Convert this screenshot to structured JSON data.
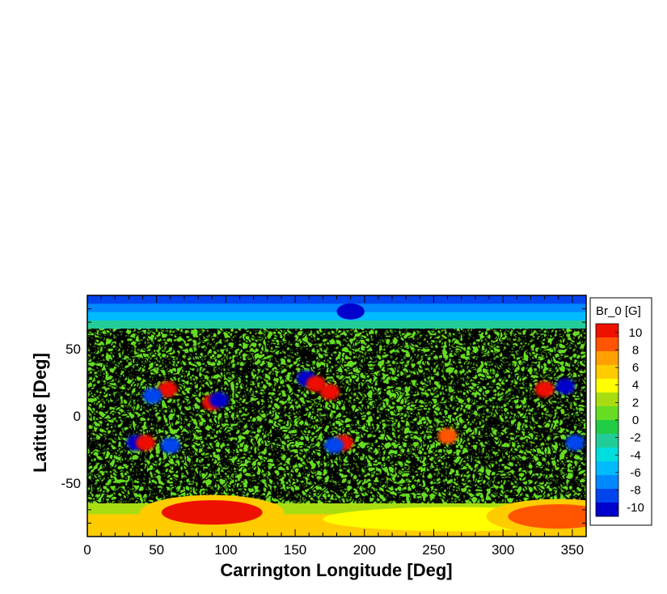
{
  "chart_data": {
    "type": "heatmap",
    "title": "",
    "xlabel": "Carrington Longitude [Deg]",
    "ylabel": "Latitude [Deg]",
    "xlim": [
      0,
      360
    ],
    "ylim": [
      -90,
      90
    ],
    "x_major_ticks": [
      0,
      50,
      100,
      150,
      200,
      250,
      300,
      350
    ],
    "y_major_ticks": [
      -50,
      0,
      50
    ],
    "x_tick_labels": [
      "0",
      "50",
      "100",
      "150",
      "200",
      "250",
      "300",
      "350"
    ],
    "y_tick_labels": [
      "-50",
      "0",
      "50"
    ],
    "colorbar": {
      "title": "Br_0 [G]",
      "min": -11,
      "max": 11,
      "tick_values": [
        10,
        8,
        6,
        4,
        2,
        0,
        -2,
        -4,
        -6,
        -8,
        -10
      ],
      "tick_labels": [
        "10",
        "8",
        "6",
        "4",
        "2",
        "0",
        "-2",
        "-4",
        "-6",
        "-8",
        "-10"
      ],
      "colors": [
        "#0000cc",
        "#0044ee",
        "#0088ff",
        "#00bbff",
        "#00dddd",
        "#22cc99",
        "#22cc44",
        "#66dd22",
        "#aadd11",
        "#ffff00",
        "#ffcc00",
        "#ffa000",
        "#ff5500",
        "#ee1100"
      ]
    },
    "features": {
      "polar_cap_latitude": 65,
      "north_cap_value": -8,
      "south_cap_value": 6,
      "active_regions": [
        {
          "lon": 58,
          "lat": 20,
          "value": 10
        },
        {
          "lon": 47,
          "lat": 15,
          "value": -9
        },
        {
          "lon": 90,
          "lat": 10,
          "value": 10
        },
        {
          "lon": 95,
          "lat": 12,
          "value": -10
        },
        {
          "lon": 158,
          "lat": 28,
          "value": -10
        },
        {
          "lon": 165,
          "lat": 24,
          "value": 10
        },
        {
          "lon": 175,
          "lat": 18,
          "value": 10
        },
        {
          "lon": 330,
          "lat": 20,
          "value": 10
        },
        {
          "lon": 345,
          "lat": 22,
          "value": -10
        },
        {
          "lon": 35,
          "lat": -20,
          "value": -10
        },
        {
          "lon": 42,
          "lat": -20,
          "value": 10
        },
        {
          "lon": 60,
          "lat": -22,
          "value": -9
        },
        {
          "lon": 185,
          "lat": -20,
          "value": 10
        },
        {
          "lon": 178,
          "lat": -22,
          "value": -9
        },
        {
          "lon": 260,
          "lat": -15,
          "value": 9
        },
        {
          "lon": 352,
          "lat": -20,
          "value": -8
        }
      ],
      "south_polar_peaks": [
        {
          "lon": 90,
          "lat": -72,
          "value": 10
        },
        {
          "lon": 340,
          "lat": -75,
          "value": 8
        }
      ],
      "north_polar_peaks": [
        {
          "lon": 190,
          "lat": 78,
          "value": -11
        }
      ]
    }
  }
}
